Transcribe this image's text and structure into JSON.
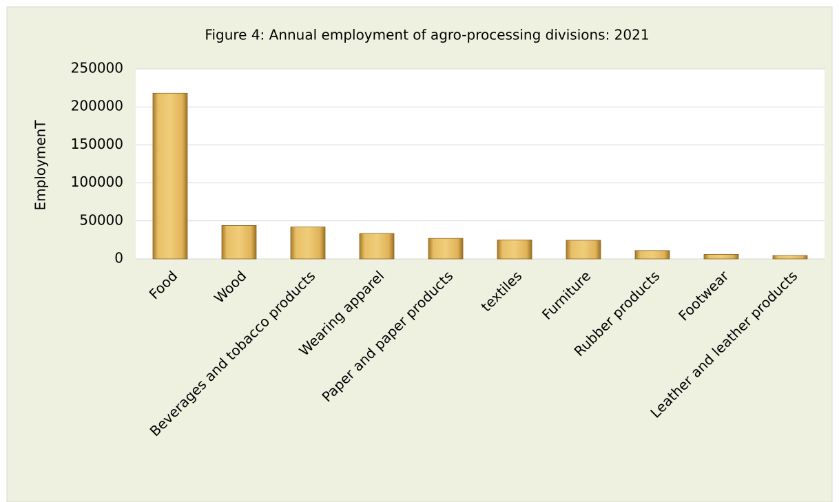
{
  "chart_data": {
    "type": "bar",
    "title": "Figure 4: Annual employment of agro-processing divisions: 2021",
    "y_label": "EmploymenT",
    "categories": [
      "Food",
      "Wood",
      "Beverages and tobacco products",
      "Wearing apparel",
      "Paper and paper products",
      "textiles",
      "Furniture",
      "Rubber products",
      "Footwear",
      "Leather and leather products"
    ],
    "values": [
      218000,
      44000,
      42000,
      33500,
      27000,
      25000,
      24500,
      11000,
      6000,
      4500
    ],
    "color": "#e3b55a",
    "ylim": [
      0,
      250000
    ],
    "yticks": [
      0,
      50000,
      100000,
      150000,
      200000,
      250000
    ],
    "grid": true
  }
}
